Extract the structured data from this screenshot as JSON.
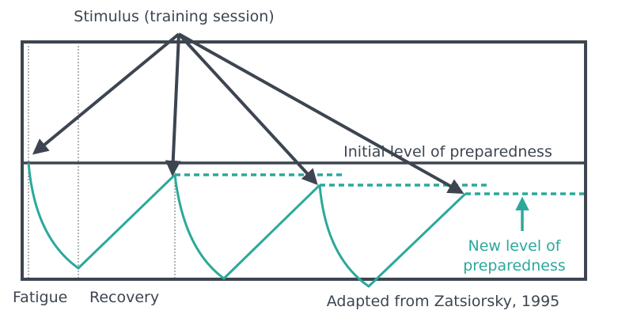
{
  "title": "Stimulus (training session)",
  "baseline_label": "Initial level of preparedness",
  "new_level_label": [
    "New level of",
    "preparedness"
  ],
  "phase_labels": {
    "fatigue": "Fatigue",
    "recovery": "Recovery"
  },
  "source": "Adapted from Zatsiorsky, 1995",
  "colors": {
    "frame": "#3d4550",
    "curve": "#2aa99a",
    "text": "#3d4550",
    "accent_text": "#2aa99a"
  }
}
